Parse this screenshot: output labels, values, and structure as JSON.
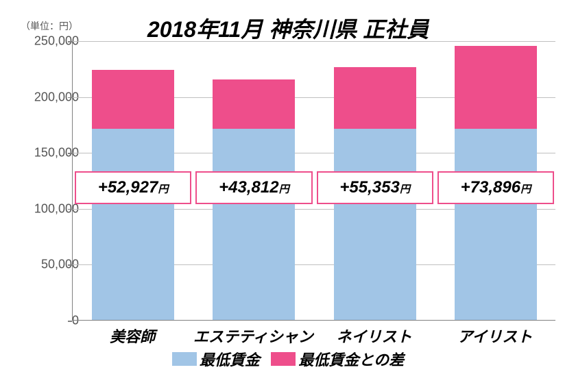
{
  "chart": {
    "type": "stacked-bar",
    "title": "2018年11月 神奈川県 正社員",
    "unit_label": "（単位：円）",
    "title_fontsize": 32,
    "background_color": "#ffffff",
    "grid_color": "#bfbfbf",
    "axis_color": "#808080",
    "text_color": "#555555",
    "y_axis": {
      "min": 0,
      "max": 250000,
      "step": 50000,
      "ticks": [
        "0",
        "50,000",
        "100,000",
        "150,000",
        "200,000",
        "250,000"
      ],
      "label_fontsize": 18
    },
    "categories": [
      "美容師",
      "エステティシャン",
      "ネイリスト",
      "アイリスト"
    ],
    "category_fontsize": 22,
    "series": [
      {
        "name": "最低賃金",
        "color": "#a1c5e6",
        "values": [
          171000,
          171000,
          171000,
          171000
        ]
      },
      {
        "name": "最低賃金との差",
        "color": "#ee4e8b",
        "values": [
          52927,
          43812,
          55353,
          73896
        ]
      }
    ],
    "annotations": [
      {
        "value": "+52,927",
        "suffix": "円"
      },
      {
        "value": "+43,812",
        "suffix": "円"
      },
      {
        "value": "+55,353",
        "suffix": "円"
      },
      {
        "value": "+73,896",
        "suffix": "円"
      }
    ],
    "annotation_border_color": "#ee4e8b",
    "annotation_fontsize": 24,
    "bar_width_ratio": 0.68,
    "legend_fontsize": 22
  }
}
